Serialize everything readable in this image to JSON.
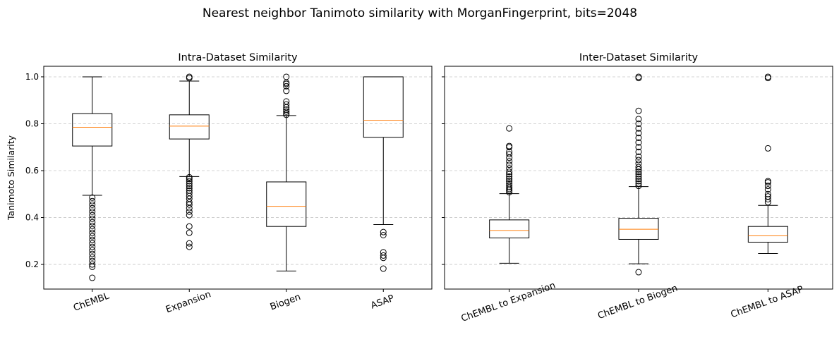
{
  "suptitle": "Nearest neighbor Tanimoto similarity with MorganFingerprint, bits=2048",
  "chart_data": [
    {
      "type": "box",
      "title": "Intra-Dataset Similarity",
      "xlabel": "",
      "ylabel": "Tanimoto Similarity",
      "ylim": [
        0.095,
        1.045
      ],
      "yticks": [
        0.2,
        0.4,
        0.6,
        0.8,
        1.0
      ],
      "ytick_labels": [
        "0.2",
        "0.4",
        "0.6",
        "0.8",
        "1.0"
      ],
      "grid": "y dashed",
      "categories": [
        "ChEMBL",
        "Expansion",
        "Biogen",
        "ASAP"
      ],
      "boxes": [
        {
          "label": "ChEMBL",
          "whisker_low": 0.495,
          "q1": 0.705,
          "median": 0.785,
          "q3": 0.843,
          "whisker_high": 1.0,
          "outliers": [
            0.143,
            0.19,
            0.2,
            0.215,
            0.23,
            0.245,
            0.26,
            0.275,
            0.29,
            0.305,
            0.32,
            0.335,
            0.35,
            0.365,
            0.38,
            0.395,
            0.41,
            0.425,
            0.44,
            0.455,
            0.47,
            0.485
          ]
        },
        {
          "label": "Expansion",
          "whisker_low": 0.575,
          "q1": 0.735,
          "median": 0.79,
          "q3": 0.838,
          "whisker_high": 0.982,
          "outliers": [
            0.275,
            0.29,
            0.335,
            0.362,
            0.41,
            0.425,
            0.44,
            0.455,
            0.465,
            0.48,
            0.492,
            0.505,
            0.515,
            0.525,
            0.535,
            0.545,
            0.555,
            0.565,
            0.572,
            0.995,
            1.0
          ]
        },
        {
          "label": "Biogen",
          "whisker_low": 0.172,
          "q1": 0.362,
          "median": 0.448,
          "q3": 0.552,
          "whisker_high": 0.835,
          "outliers": [
            0.838,
            0.845,
            0.852,
            0.86,
            0.87,
            0.882,
            0.895,
            0.94,
            0.96,
            0.97,
            0.975,
            1.0
          ]
        },
        {
          "label": "ASAP",
          "whisker_low": 0.37,
          "q1": 0.742,
          "median": 0.815,
          "q3": 1.0,
          "whisker_high": 1.0,
          "outliers": [
            0.182,
            0.228,
            0.238,
            0.252,
            0.325,
            0.338
          ]
        }
      ]
    },
    {
      "type": "box",
      "title": "Inter-Dataset Similarity",
      "xlabel": "",
      "ylabel": "",
      "ylim": [
        0.095,
        1.045
      ],
      "yticks": [
        0.2,
        0.4,
        0.6,
        0.8,
        1.0
      ],
      "grid": "y dashed",
      "sharey": true,
      "categories": [
        "ChEMBL to Expansion",
        "ChEMBL to Biogen",
        "ChEMBL to ASAP"
      ],
      "boxes": [
        {
          "label": "ChEMBL to Expansion",
          "whisker_low": 0.205,
          "q1": 0.313,
          "median": 0.345,
          "q3": 0.39,
          "whisker_high": 0.502,
          "outliers": [
            0.508,
            0.515,
            0.522,
            0.53,
            0.538,
            0.546,
            0.555,
            0.565,
            0.575,
            0.585,
            0.595,
            0.61,
            0.625,
            0.64,
            0.655,
            0.67,
            0.68,
            0.7,
            0.705,
            0.78
          ]
        },
        {
          "label": "ChEMBL to Biogen",
          "whisker_low": 0.203,
          "q1": 0.307,
          "median": 0.35,
          "q3": 0.397,
          "whisker_high": 0.532,
          "outliers": [
            0.167,
            0.535,
            0.545,
            0.555,
            0.565,
            0.575,
            0.585,
            0.595,
            0.605,
            0.615,
            0.63,
            0.645,
            0.66,
            0.68,
            0.7,
            0.72,
            0.74,
            0.76,
            0.78,
            0.8,
            0.82,
            0.855,
            0.995,
            1.0
          ]
        },
        {
          "label": "ChEMBL to ASAP",
          "whisker_low": 0.247,
          "q1": 0.295,
          "median": 0.322,
          "q3": 0.362,
          "whisker_high": 0.452,
          "outliers": [
            0.465,
            0.478,
            0.49,
            0.5,
            0.52,
            0.535,
            0.55,
            0.555,
            0.695,
            0.995,
            1.0
          ]
        }
      ]
    }
  ]
}
